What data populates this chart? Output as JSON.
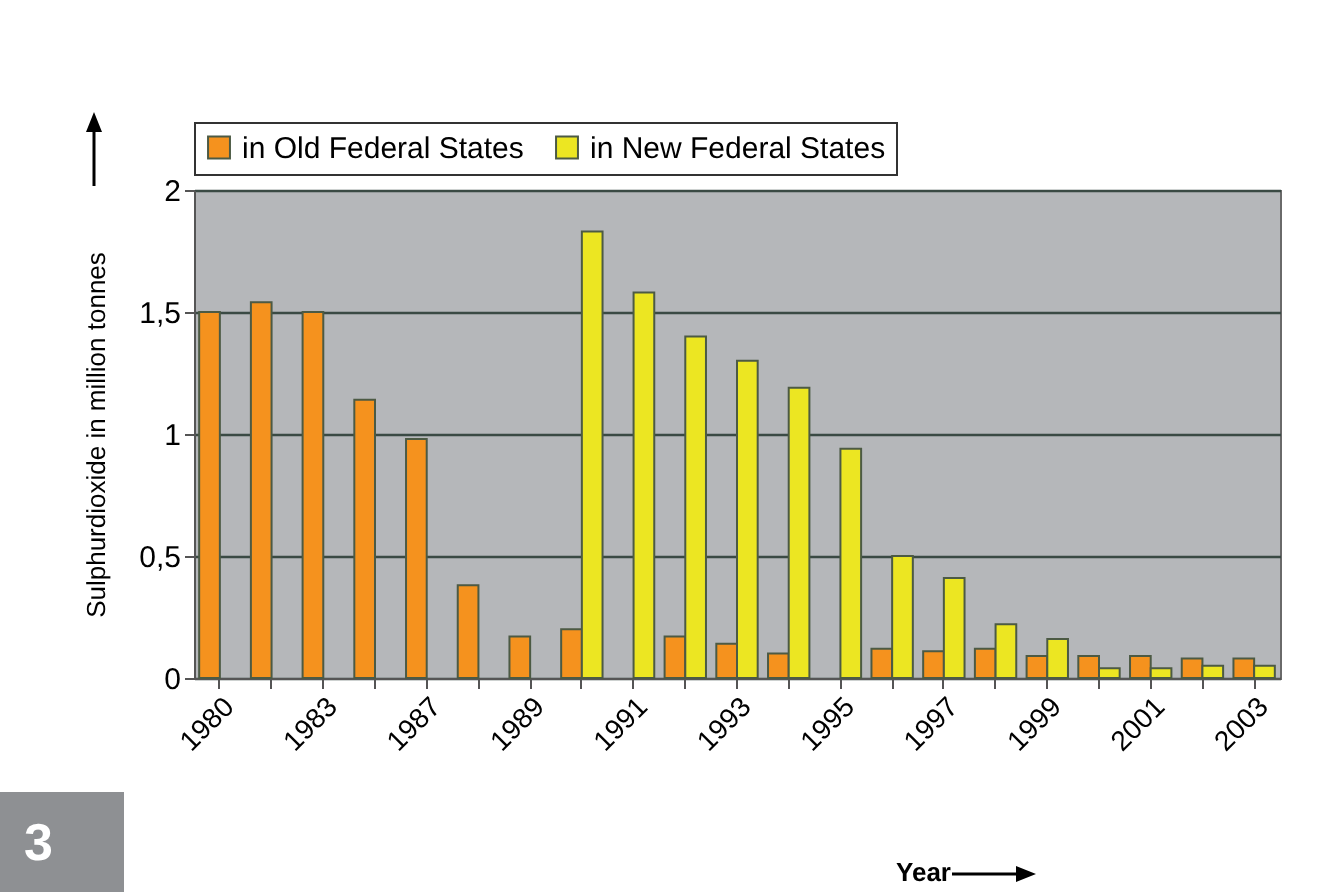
{
  "chart_data": {
    "type": "bar",
    "xlabel": "Year",
    "ylabel": "Sulphurdioxide  in million tonnes",
    "categories": [
      "1980",
      null,
      "1983",
      null,
      "1987",
      null,
      "1989",
      null,
      "1991",
      null,
      "1993",
      null,
      "1995",
      null,
      "1997",
      null,
      "1999",
      null,
      "2001",
      null,
      "2003"
    ],
    "series": [
      {
        "name": "in Old Federal States",
        "color": "#f5921e",
        "values": [
          1.5,
          1.54,
          1.5,
          1.14,
          0.98,
          0.38,
          0.17,
          0.2,
          null,
          0.17,
          0.14,
          0.1,
          null,
          0.12,
          0.11,
          0.12,
          0.09,
          0.09,
          0.09,
          0.08,
          0.08
        ]
      },
      {
        "name": "in New Federal States",
        "color": "#ece622",
        "values": [
          null,
          null,
          null,
          null,
          null,
          null,
          null,
          1.83,
          1.58,
          1.4,
          1.3,
          1.19,
          0.94,
          0.5,
          0.41,
          0.22,
          0.16,
          0.04,
          0.04,
          0.05,
          0.05
        ]
      }
    ],
    "ylim": [
      0,
      2
    ],
    "yticks": [
      0,
      {
        "value": 0.5,
        "label": "0,5"
      },
      1,
      {
        "value": 1.5,
        "label": "1,5"
      },
      2
    ],
    "grid": "y",
    "legend": "top",
    "annotations": [
      "3"
    ]
  }
}
